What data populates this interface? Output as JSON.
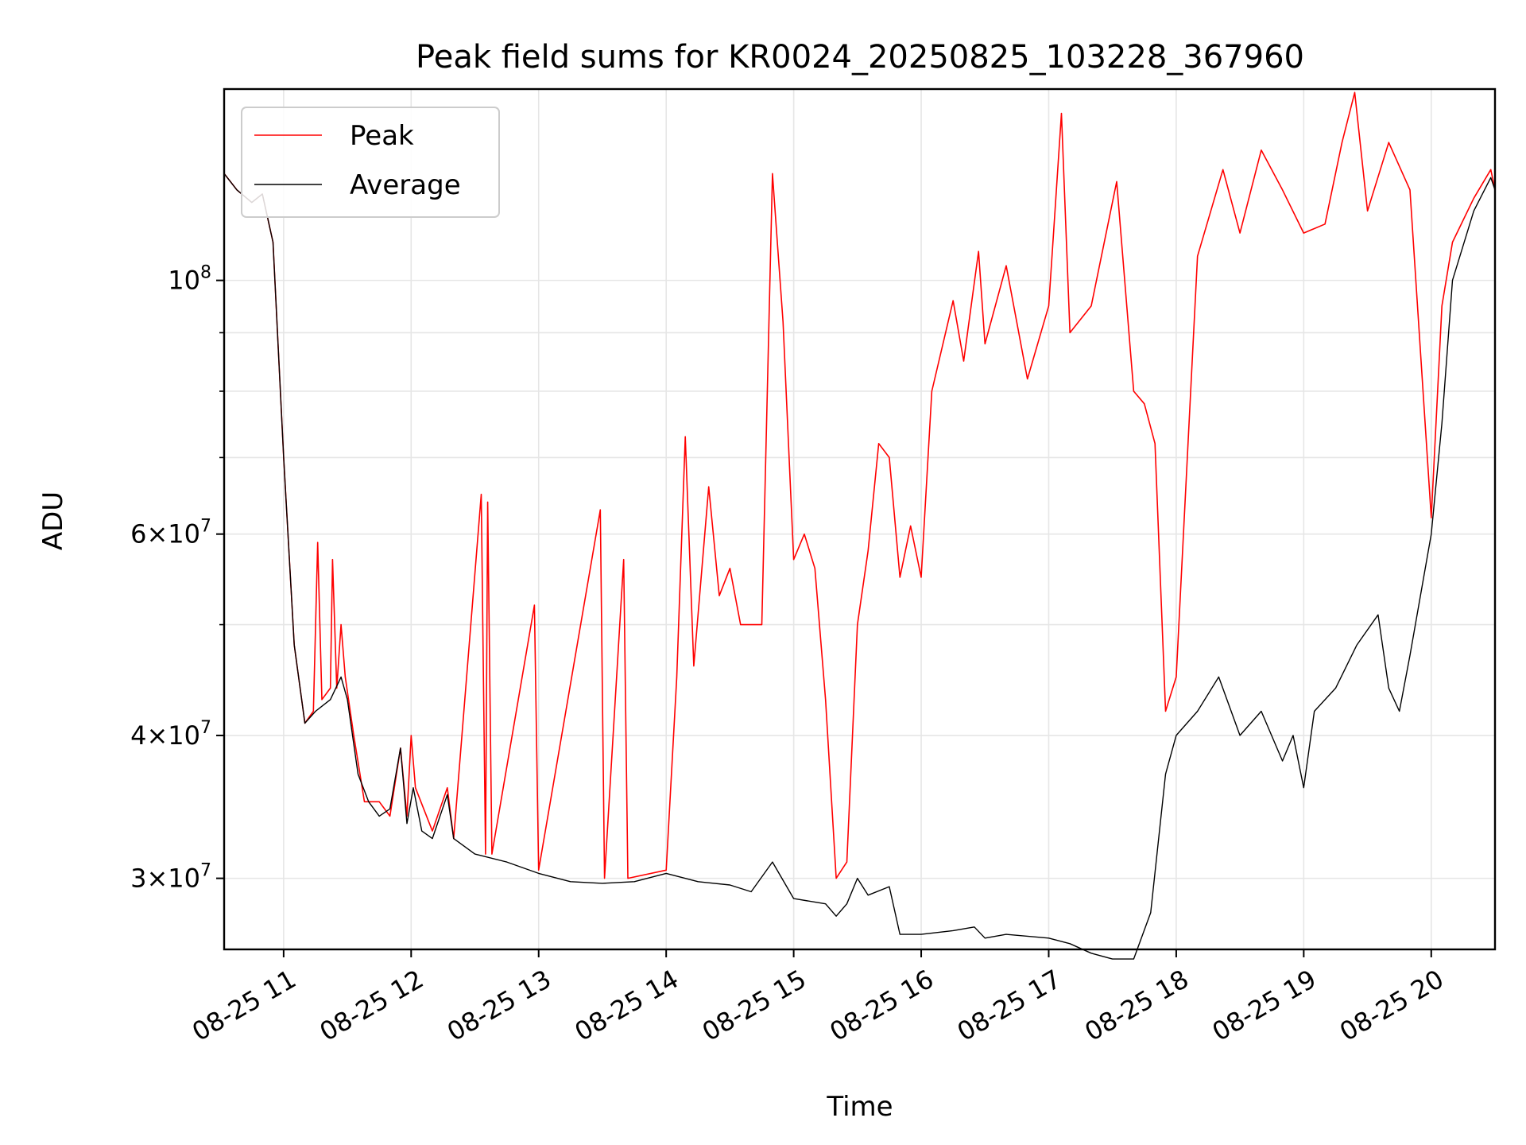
{
  "chart_data": {
    "type": "line",
    "title": "Peak field sums for KR0024_20250825_103228_367960",
    "xlabel": "Time",
    "ylabel": "ADU",
    "yscale": "log",
    "xlim": [
      "2025-08-25 10:32",
      "2025-08-25 20:30"
    ],
    "ylim": [
      26000000,
      147000000
    ],
    "grid": true,
    "legend_position": "top-left",
    "x_ticks": [
      {
        "t": "2025-08-25 11:00",
        "label": "08-25 11"
      },
      {
        "t": "2025-08-25 12:00",
        "label": "08-25 12"
      },
      {
        "t": "2025-08-25 13:00",
        "label": "08-25 13"
      },
      {
        "t": "2025-08-25 14:00",
        "label": "08-25 14"
      },
      {
        "t": "2025-08-25 15:00",
        "label": "08-25 15"
      },
      {
        "t": "2025-08-25 16:00",
        "label": "08-25 16"
      },
      {
        "t": "2025-08-25 17:00",
        "label": "08-25 17"
      },
      {
        "t": "2025-08-25 18:00",
        "label": "08-25 18"
      },
      {
        "t": "2025-08-25 19:00",
        "label": "08-25 19"
      },
      {
        "t": "2025-08-25 20:00",
        "label": "08-25 20"
      }
    ],
    "y_major_ticks": [
      {
        "value": 30000000,
        "coef": "3",
        "exp": "7"
      },
      {
        "value": 40000000,
        "coef": "4",
        "exp": "7"
      },
      {
        "value": 60000000,
        "coef": "6",
        "exp": "7"
      },
      {
        "value": 100000000,
        "coef": "",
        "exp": "8"
      }
    ],
    "y_minor_ticks": [
      50000000,
      70000000,
      80000000,
      90000000
    ],
    "series": [
      {
        "name": "Peak",
        "color": "#ff0000",
        "points": [
          [
            "2025-08-25 10:32",
            124000000
          ],
          [
            "2025-08-25 10:38",
            120000000
          ],
          [
            "2025-08-25 10:45",
            117000000
          ],
          [
            "2025-08-25 10:50",
            119000000
          ],
          [
            "2025-08-25 10:55",
            108000000
          ],
          [
            "2025-08-25 11:00",
            70000000
          ],
          [
            "2025-08-25 11:05",
            48000000
          ],
          [
            "2025-08-25 11:10",
            41000000
          ],
          [
            "2025-08-25 11:14",
            42000000
          ],
          [
            "2025-08-25 11:16",
            59000000
          ],
          [
            "2025-08-25 11:18",
            43000000
          ],
          [
            "2025-08-25 11:22",
            44000000
          ],
          [
            "2025-08-25 11:23",
            57000000
          ],
          [
            "2025-08-25 11:25",
            44000000
          ],
          [
            "2025-08-25 11:27",
            50000000
          ],
          [
            "2025-08-25 11:29",
            45000000
          ],
          [
            "2025-08-25 11:33",
            40000000
          ],
          [
            "2025-08-25 11:38",
            35000000
          ],
          [
            "2025-08-25 11:45",
            35000000
          ],
          [
            "2025-08-25 11:50",
            34000000
          ],
          [
            "2025-08-25 11:55",
            39000000
          ],
          [
            "2025-08-25 11:58",
            34000000
          ],
          [
            "2025-08-25 12:00",
            40000000
          ],
          [
            "2025-08-25 12:02",
            36000000
          ],
          [
            "2025-08-25 12:10",
            33000000
          ],
          [
            "2025-08-25 12:17",
            36000000
          ],
          [
            "2025-08-25 12:20",
            32500000
          ],
          [
            "2025-08-25 12:33",
            65000000
          ],
          [
            "2025-08-25 12:35",
            31500000
          ],
          [
            "2025-08-25 12:36",
            64000000
          ],
          [
            "2025-08-25 12:38",
            31500000
          ],
          [
            "2025-08-25 12:58",
            52000000
          ],
          [
            "2025-08-25 13:00",
            30500000
          ],
          [
            "2025-08-25 13:29",
            63000000
          ],
          [
            "2025-08-25 13:31",
            30000000
          ],
          [
            "2025-08-25 13:40",
            57000000
          ],
          [
            "2025-08-25 13:42",
            30000000
          ],
          [
            "2025-08-25 14:00",
            30500000
          ],
          [
            "2025-08-25 14:05",
            45000000
          ],
          [
            "2025-08-25 14:09",
            73000000
          ],
          [
            "2025-08-25 14:13",
            46000000
          ],
          [
            "2025-08-25 14:20",
            66000000
          ],
          [
            "2025-08-25 14:25",
            53000000
          ],
          [
            "2025-08-25 14:30",
            56000000
          ],
          [
            "2025-08-25 14:35",
            50000000
          ],
          [
            "2025-08-25 14:45",
            50000000
          ],
          [
            "2025-08-25 14:50",
            124000000
          ],
          [
            "2025-08-25 14:52",
            110000000
          ],
          [
            "2025-08-25 14:55",
            92000000
          ],
          [
            "2025-08-25 15:00",
            57000000
          ],
          [
            "2025-08-25 15:05",
            60000000
          ],
          [
            "2025-08-25 15:10",
            56000000
          ],
          [
            "2025-08-25 15:15",
            43000000
          ],
          [
            "2025-08-25 15:20",
            30000000
          ],
          [
            "2025-08-25 15:25",
            31000000
          ],
          [
            "2025-08-25 15:30",
            50000000
          ],
          [
            "2025-08-25 15:35",
            58000000
          ],
          [
            "2025-08-25 15:40",
            72000000
          ],
          [
            "2025-08-25 15:45",
            70000000
          ],
          [
            "2025-08-25 15:50",
            55000000
          ],
          [
            "2025-08-25 15:55",
            61000000
          ],
          [
            "2025-08-25 16:00",
            55000000
          ],
          [
            "2025-08-25 16:05",
            80000000
          ],
          [
            "2025-08-25 16:15",
            96000000
          ],
          [
            "2025-08-25 16:20",
            85000000
          ],
          [
            "2025-08-25 16:27",
            106000000
          ],
          [
            "2025-08-25 16:30",
            88000000
          ],
          [
            "2025-08-25 16:40",
            103000000
          ],
          [
            "2025-08-25 16:50",
            82000000
          ],
          [
            "2025-08-25 17:00",
            95000000
          ],
          [
            "2025-08-25 17:06",
            140000000
          ],
          [
            "2025-08-25 17:10",
            90000000
          ],
          [
            "2025-08-25 17:20",
            95000000
          ],
          [
            "2025-08-25 17:32",
            122000000
          ],
          [
            "2025-08-25 17:40",
            80000000
          ],
          [
            "2025-08-25 17:45",
            78000000
          ],
          [
            "2025-08-25 17:50",
            72000000
          ],
          [
            "2025-08-25 17:55",
            42000000
          ],
          [
            "2025-08-25 18:00",
            45000000
          ],
          [
            "2025-08-25 18:10",
            105000000
          ],
          [
            "2025-08-25 18:22",
            125000000
          ],
          [
            "2025-08-25 18:30",
            110000000
          ],
          [
            "2025-08-25 18:40",
            130000000
          ],
          [
            "2025-08-25 18:50",
            120000000
          ],
          [
            "2025-08-25 19:00",
            110000000
          ],
          [
            "2025-08-25 19:10",
            112000000
          ],
          [
            "2025-08-25 19:18",
            132000000
          ],
          [
            "2025-08-25 19:24",
            146000000
          ],
          [
            "2025-08-25 19:30",
            115000000
          ],
          [
            "2025-08-25 19:40",
            132000000
          ],
          [
            "2025-08-25 19:50",
            120000000
          ],
          [
            "2025-08-25 20:00",
            62000000
          ],
          [
            "2025-08-25 20:05",
            95000000
          ],
          [
            "2025-08-25 20:10",
            108000000
          ],
          [
            "2025-08-25 20:20",
            118000000
          ],
          [
            "2025-08-25 20:28",
            125000000
          ],
          [
            "2025-08-25 20:30",
            120000000
          ]
        ]
      },
      {
        "name": "Average",
        "color": "#000000",
        "points": [
          [
            "2025-08-25 10:32",
            124000000
          ],
          [
            "2025-08-25 10:38",
            120000000
          ],
          [
            "2025-08-25 10:45",
            117000000
          ],
          [
            "2025-08-25 10:50",
            119000000
          ],
          [
            "2025-08-25 10:55",
            108000000
          ],
          [
            "2025-08-25 11:00",
            70000000
          ],
          [
            "2025-08-25 11:05",
            48000000
          ],
          [
            "2025-08-25 11:10",
            41000000
          ],
          [
            "2025-08-25 11:15",
            42000000
          ],
          [
            "2025-08-25 11:22",
            43000000
          ],
          [
            "2025-08-25 11:27",
            45000000
          ],
          [
            "2025-08-25 11:30",
            43000000
          ],
          [
            "2025-08-25 11:35",
            37000000
          ],
          [
            "2025-08-25 11:40",
            35000000
          ],
          [
            "2025-08-25 11:45",
            34000000
          ],
          [
            "2025-08-25 11:50",
            34500000
          ],
          [
            "2025-08-25 11:55",
            39000000
          ],
          [
            "2025-08-25 11:58",
            33500000
          ],
          [
            "2025-08-25 12:01",
            36000000
          ],
          [
            "2025-08-25 12:05",
            33000000
          ],
          [
            "2025-08-25 12:10",
            32500000
          ],
          [
            "2025-08-25 12:17",
            35500000
          ],
          [
            "2025-08-25 12:20",
            32500000
          ],
          [
            "2025-08-25 12:30",
            31500000
          ],
          [
            "2025-08-25 12:45",
            31000000
          ],
          [
            "2025-08-25 13:00",
            30300000
          ],
          [
            "2025-08-25 13:15",
            29800000
          ],
          [
            "2025-08-25 13:30",
            29700000
          ],
          [
            "2025-08-25 13:45",
            29800000
          ],
          [
            "2025-08-25 14:00",
            30300000
          ],
          [
            "2025-08-25 14:15",
            29800000
          ],
          [
            "2025-08-25 14:30",
            29600000
          ],
          [
            "2025-08-25 14:40",
            29200000
          ],
          [
            "2025-08-25 14:50",
            31000000
          ],
          [
            "2025-08-25 15:00",
            28800000
          ],
          [
            "2025-08-25 15:15",
            28500000
          ],
          [
            "2025-08-25 15:20",
            27800000
          ],
          [
            "2025-08-25 15:25",
            28500000
          ],
          [
            "2025-08-25 15:30",
            30000000
          ],
          [
            "2025-08-25 15:35",
            29000000
          ],
          [
            "2025-08-25 15:45",
            29500000
          ],
          [
            "2025-08-25 15:50",
            26800000
          ],
          [
            "2025-08-25 16:00",
            26800000
          ],
          [
            "2025-08-25 16:15",
            27000000
          ],
          [
            "2025-08-25 16:25",
            27200000
          ],
          [
            "2025-08-25 16:30",
            26600000
          ],
          [
            "2025-08-25 16:40",
            26800000
          ],
          [
            "2025-08-25 17:00",
            26600000
          ],
          [
            "2025-08-25 17:10",
            26300000
          ],
          [
            "2025-08-25 17:20",
            25800000
          ],
          [
            "2025-08-25 17:30",
            25500000
          ],
          [
            "2025-08-25 17:40",
            25500000
          ],
          [
            "2025-08-25 17:48",
            28000000
          ],
          [
            "2025-08-25 17:55",
            37000000
          ],
          [
            "2025-08-25 18:00",
            40000000
          ],
          [
            "2025-08-25 18:10",
            42000000
          ],
          [
            "2025-08-25 18:20",
            45000000
          ],
          [
            "2025-08-25 18:30",
            40000000
          ],
          [
            "2025-08-25 18:40",
            42000000
          ],
          [
            "2025-08-25 18:50",
            38000000
          ],
          [
            "2025-08-25 18:55",
            40000000
          ],
          [
            "2025-08-25 19:00",
            36000000
          ],
          [
            "2025-08-25 19:05",
            42000000
          ],
          [
            "2025-08-25 19:15",
            44000000
          ],
          [
            "2025-08-25 19:25",
            48000000
          ],
          [
            "2025-08-25 19:35",
            51000000
          ],
          [
            "2025-08-25 19:40",
            44000000
          ],
          [
            "2025-08-25 19:45",
            42000000
          ],
          [
            "2025-08-25 19:50",
            47000000
          ],
          [
            "2025-08-25 20:00",
            60000000
          ],
          [
            "2025-08-25 20:05",
            75000000
          ],
          [
            "2025-08-25 20:10",
            100000000
          ],
          [
            "2025-08-25 20:20",
            115000000
          ],
          [
            "2025-08-25 20:28",
            123000000
          ],
          [
            "2025-08-25 20:30",
            120000000
          ]
        ]
      }
    ]
  }
}
